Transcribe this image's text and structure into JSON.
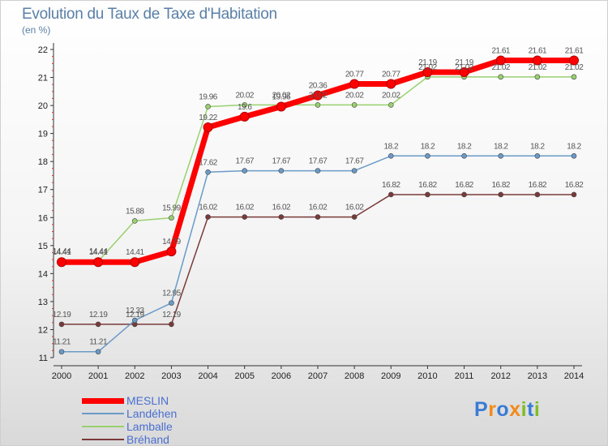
{
  "title": "Evolution du Taux de Taxe d'Habitation",
  "subtitle": "(en %)",
  "brand": {
    "name": "Proxiti",
    "colors": [
      "#3a7bd5",
      "#f28a1c",
      "#3a7bd5",
      "#f28a1c",
      "#7bbf24",
      "#3a7bd5",
      "#7bbf24"
    ]
  },
  "chart_data": {
    "type": "line",
    "title": "Evolution du Taux de Taxe d'Habitation",
    "ylabel": "(en %)",
    "xlabel": "",
    "x": [
      "2000",
      "2001",
      "2002",
      "2003",
      "2004",
      "2005",
      "2006",
      "2007",
      "2008",
      "2009",
      "2010",
      "2011",
      "2012",
      "2013",
      "2014"
    ],
    "yticks": [
      "11",
      "12",
      "13",
      "14",
      "15",
      "16",
      "17",
      "18",
      "19",
      "20",
      "21",
      "22"
    ],
    "ylim": [
      11,
      22
    ],
    "grid": false,
    "legend_position": "bottom-left",
    "series": [
      {
        "name": "MESLIN",
        "color": "#ff0000",
        "values": [
          14.41,
          14.41,
          14.41,
          14.79,
          19.22,
          19.6,
          19.96,
          20.36,
          20.77,
          20.77,
          21.19,
          21.19,
          21.61,
          21.61,
          21.61
        ],
        "labels": [
          "14.41",
          "14.41",
          "14.41",
          "14.79",
          "19.22",
          "19.6",
          "19.96",
          "20.36",
          "20.77",
          "20.77",
          "21.19",
          "21.19",
          "21.61",
          "21.61",
          "21.61"
        ]
      },
      {
        "name": "Landéhen",
        "color": "#6a9bc8",
        "values": [
          11.21,
          11.21,
          12.33,
          12.95,
          17.62,
          17.67,
          17.67,
          17.67,
          17.67,
          18.2,
          18.2,
          18.2,
          18.2,
          18.2,
          18.2
        ],
        "labels": [
          "11.21",
          "11.21",
          "12.33",
          "12.95",
          "17.62",
          "17.67",
          "17.67",
          "17.67",
          "17.67",
          "18.2",
          "18.2",
          "18.2",
          "18.2",
          "18.2",
          "18.2"
        ]
      },
      {
        "name": "Lamballe",
        "color": "#99d070",
        "values": [
          14.44,
          14.44,
          15.88,
          15.99,
          19.96,
          20.02,
          20.02,
          20.02,
          20.02,
          20.02,
          21.02,
          21.02,
          21.02,
          21.02,
          21.02
        ],
        "labels": [
          "14.44",
          "14.44",
          "15.88",
          "15.99",
          "19.96",
          "20.02",
          "20.02",
          "20.02",
          "20.02",
          "20.02",
          "21.02",
          "21.02",
          "21.02",
          "21.02",
          "21.02"
        ]
      },
      {
        "name": "Bréhand",
        "color": "#7a3a3a",
        "values": [
          12.19,
          12.19,
          12.19,
          12.19,
          16.02,
          16.02,
          16.02,
          16.02,
          16.02,
          16.82,
          16.82,
          16.82,
          16.82,
          16.82,
          16.82
        ],
        "labels": [
          "12.19",
          "12.19",
          "12.19",
          "12.19",
          "16.02",
          "16.02",
          "16.02",
          "16.02",
          "16.02",
          "16.82",
          "16.82",
          "16.82",
          "16.82",
          "16.82",
          "16.82"
        ]
      }
    ]
  }
}
